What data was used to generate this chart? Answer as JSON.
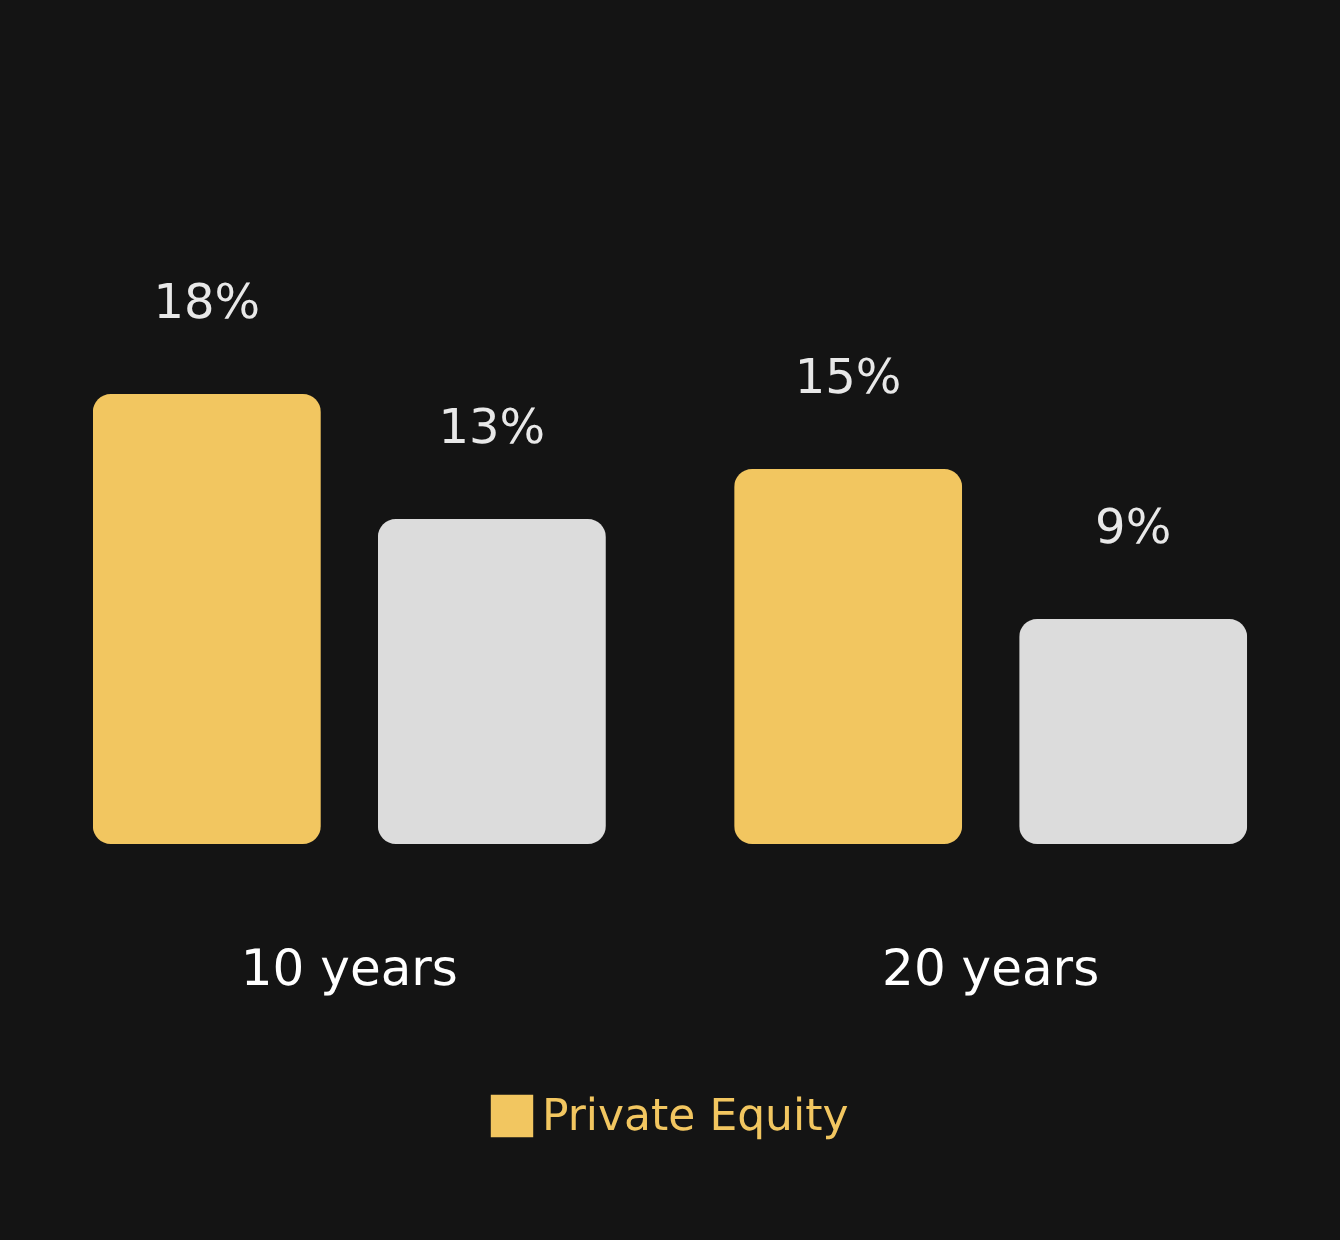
{
  "chart_data": {
    "type": "bar",
    "categories": [
      "10 years",
      "20 years"
    ],
    "series": [
      {
        "name": "Private Equity",
        "color": "#f2c660",
        "values": [
          18,
          15
        ],
        "value_labels": [
          "18%",
          "15%"
        ]
      },
      {
        "color": "#dcdcdc",
        "values": [
          13,
          9
        ],
        "value_labels": [
          "13%",
          "9%"
        ]
      }
    ],
    "legend": "bottom"
  }
}
